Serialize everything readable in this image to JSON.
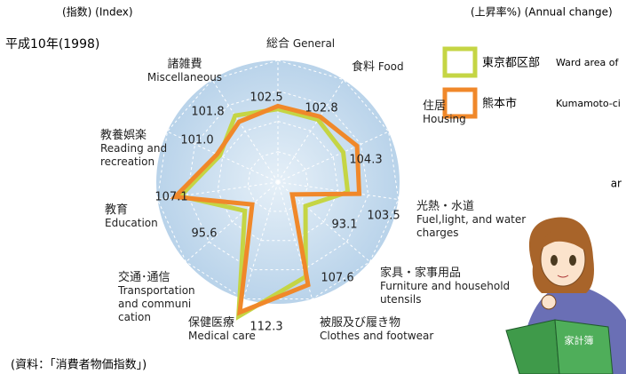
{
  "chart_data": {
    "type": "radar",
    "title": "平成10年(1998)",
    "left_note": "(指数) (Index)",
    "right_note": "(上昇率%) (Annual change)",
    "source": "(資料：「消費者物価指数」)",
    "side_fragment": "ar",
    "book_label": "家計簿",
    "categories": [
      "General",
      "Food",
      "Housing",
      "Fuel,light, and water charges",
      "Furniture and household utensils",
      "Clothes and footwear",
      "Medical care",
      "Transportation and communi cation",
      "Education",
      "Reading and recreation",
      "Miscellaneous"
    ],
    "categories_ja": [
      "総合",
      "食料",
      "住居",
      "光熱・水道",
      "家具・家事用品",
      "被服及び履き物",
      "保健医療",
      "交通･通信",
      "教育",
      "教養娯楽",
      "諸雑費"
    ],
    "rlim": [
      90,
      110
    ],
    "rticks": [
      95,
      100,
      105,
      110
    ],
    "grid": true,
    "series": [
      {
        "name": "東京都区部",
        "name_en": "Ward area of",
        "color": "#c5d544",
        "values": [
          102,
          102.2,
          101.8,
          101.6,
          96,
          106.2,
          113,
          97.2,
          106.2,
          100.5,
          103
        ]
      },
      {
        "name": "熊本市",
        "name_en": "Kumamoto-ci",
        "color": "#f0882a",
        "values": [
          102.5,
          102.8,
          104.3,
          103.5,
          93.1,
          107.6,
          112.3,
          95.6,
          107.1,
          101,
          101.8
        ],
        "value_labels": [
          "102.5",
          "102.8",
          "104.3",
          "103.5",
          "93.1",
          "107.6",
          "112.3",
          "95.6",
          "107.1",
          "101.0",
          "101.8"
        ]
      }
    ]
  }
}
